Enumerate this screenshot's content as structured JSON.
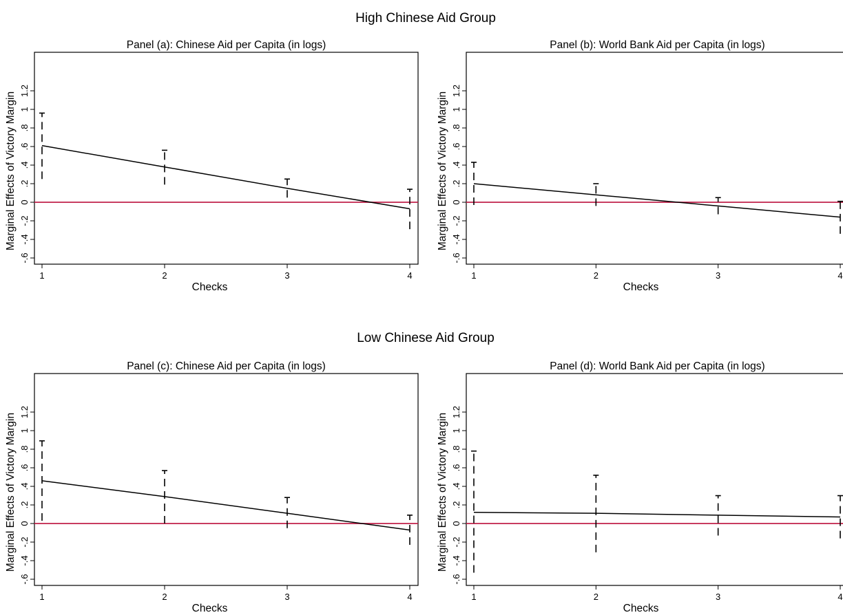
{
  "groups": [
    {
      "title": "High Chinese Aid Group"
    },
    {
      "title": "Low Chinese Aid Group"
    }
  ],
  "colors": {
    "zero_line": "#c0204a",
    "ink": "#000000"
  },
  "chart_data": [
    {
      "type": "line",
      "title": "Panel (a): Chinese Aid per Capita (in logs)",
      "xlabel": "Checks",
      "ylabel": "Marginal Effects of Victory Margin",
      "x": [
        1,
        2,
        3,
        4
      ],
      "x_ticks": [
        "1",
        "2",
        "3",
        "4"
      ],
      "y_ticks": [
        "-.6",
        "-.4",
        "-.2",
        "0",
        ".2",
        ".4",
        ".6",
        ".8",
        "1",
        "1.2"
      ],
      "ylim": [
        -0.6,
        1.2
      ],
      "reference_line": 0,
      "series": [
        {
          "values": [
            0.61,
            0.38,
            0.15,
            -0.07
          ],
          "ci_low": [
            0.25,
            0.19,
            0.05,
            -0.29
          ],
          "ci_high": [
            0.96,
            0.56,
            0.25,
            0.14
          ]
        }
      ]
    },
    {
      "type": "line",
      "title": "Panel (b): World Bank Aid per Capita (in logs)",
      "xlabel": "Checks",
      "ylabel": "Marginal Effects of Victory Margin",
      "x": [
        1,
        2,
        3,
        4
      ],
      "x_ticks": [
        "1",
        "2",
        "3",
        "4"
      ],
      "y_ticks": [
        "-.6",
        "-.4",
        "-.2",
        "0",
        ".2",
        ".4",
        ".6",
        ".8",
        "1",
        "1.2"
      ],
      "ylim": [
        -0.6,
        1.2
      ],
      "reference_line": 0,
      "series": [
        {
          "values": [
            0.2,
            0.08,
            -0.04,
            -0.16
          ],
          "ci_low": [
            -0.03,
            -0.04,
            -0.13,
            -0.34
          ],
          "ci_high": [
            0.43,
            0.2,
            0.05,
            0.01
          ]
        }
      ]
    },
    {
      "type": "line",
      "title": "Panel (c): Chinese Aid per Capita (in logs)",
      "xlabel": "Checks",
      "ylabel": "Marginal Effects of Victory Margin",
      "x": [
        1,
        2,
        3,
        4
      ],
      "x_ticks": [
        "1",
        "2",
        "3",
        "4"
      ],
      "y_ticks": [
        "-.6",
        "-.4",
        "-.2",
        "0",
        ".2",
        ".4",
        ".6",
        ".8",
        "1",
        "1.2"
      ],
      "ylim": [
        -0.6,
        1.2
      ],
      "reference_line": 0,
      "series": [
        {
          "values": [
            0.46,
            0.29,
            0.11,
            -0.07
          ],
          "ci_low": [
            0.03,
            0.0,
            -0.05,
            -0.23
          ],
          "ci_high": [
            0.89,
            0.57,
            0.28,
            0.09
          ]
        }
      ]
    },
    {
      "type": "line",
      "title": "Panel (d): World Bank Aid per Capita (in logs)",
      "xlabel": "Checks",
      "ylabel": "Marginal Effects of Victory Margin",
      "x": [
        1,
        2,
        3,
        4
      ],
      "x_ticks": [
        "1",
        "2",
        "3",
        "4"
      ],
      "y_ticks": [
        "-.6",
        "-.4",
        "-.2",
        "0",
        ".2",
        ".4",
        ".6",
        ".8",
        "1",
        "1.2"
      ],
      "ylim": [
        -0.6,
        1.2
      ],
      "reference_line": 0,
      "series": [
        {
          "values": [
            0.12,
            0.11,
            0.09,
            0.07
          ],
          "ci_low": [
            -0.53,
            -0.31,
            -0.13,
            -0.16
          ],
          "ci_high": [
            0.78,
            0.52,
            0.3,
            0.3
          ]
        }
      ]
    }
  ]
}
